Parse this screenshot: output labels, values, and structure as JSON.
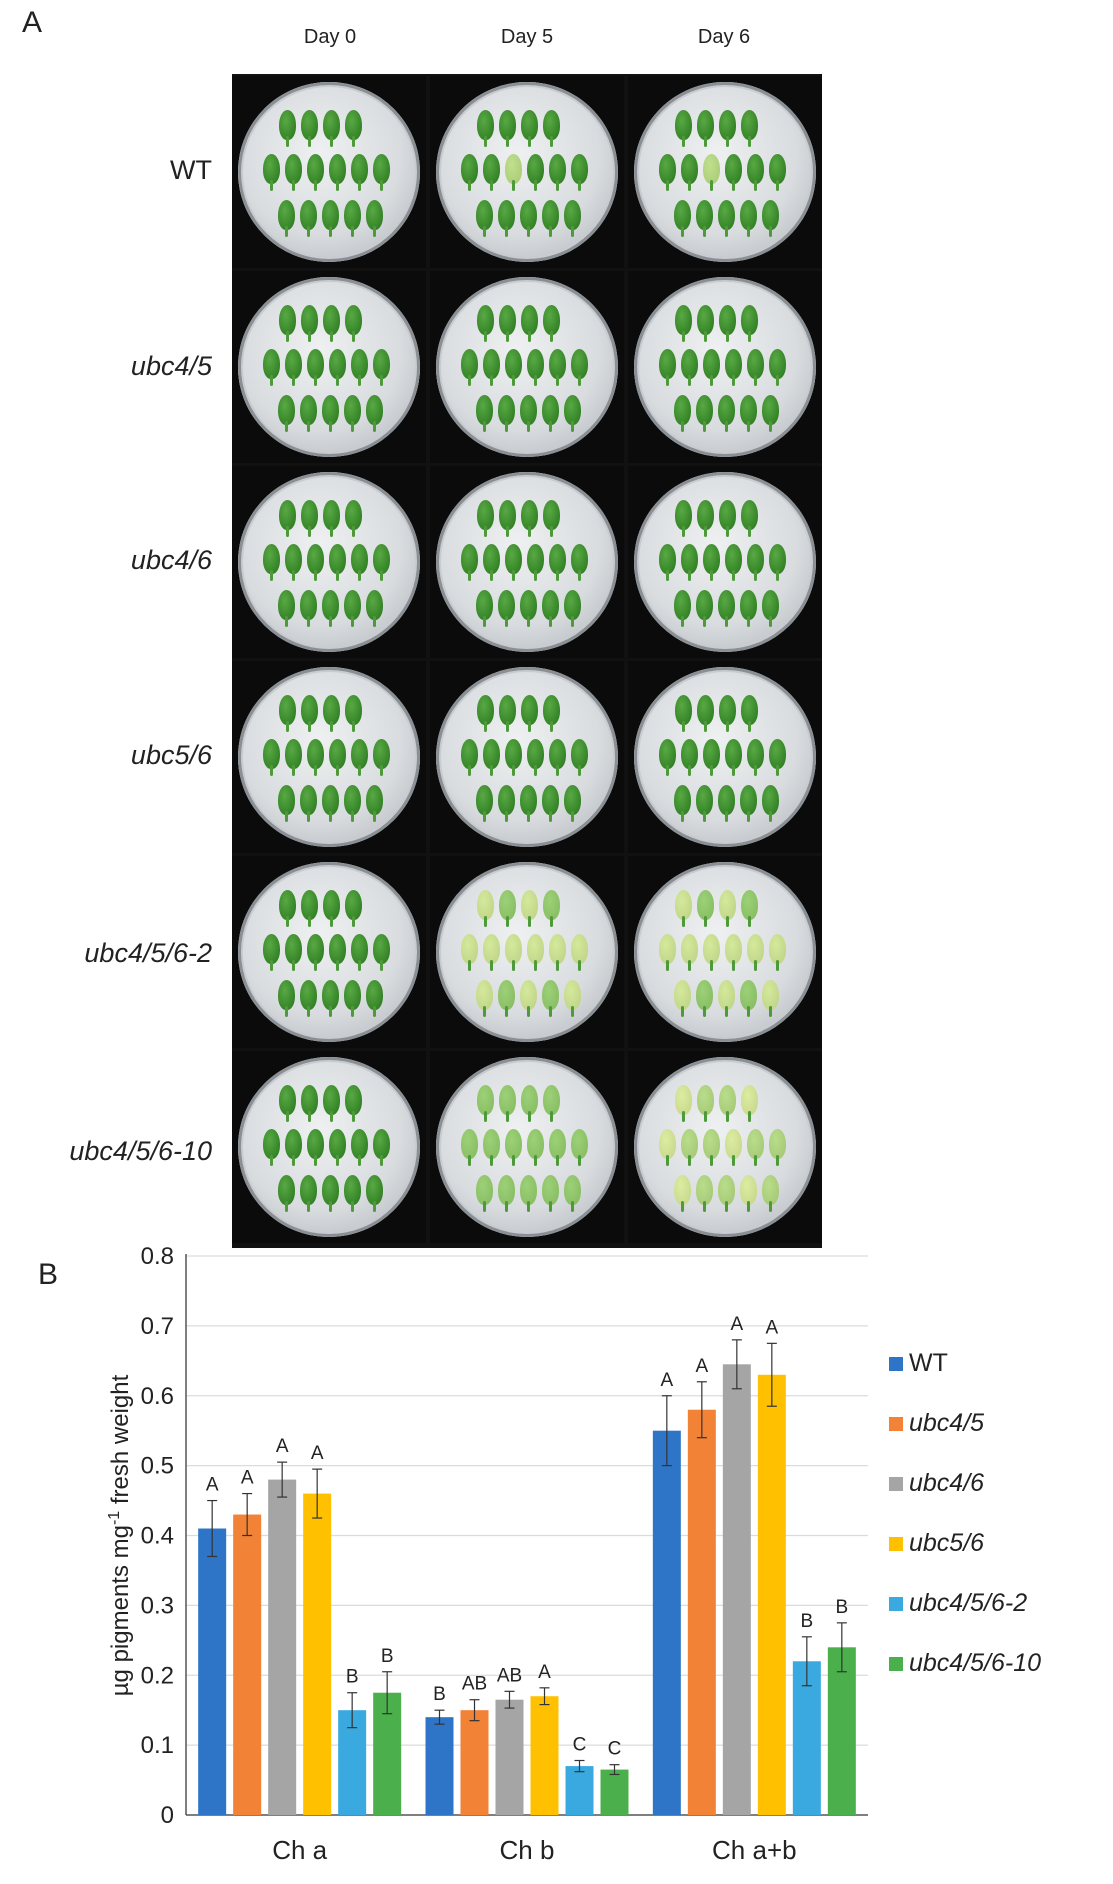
{
  "panel_a": {
    "letter": "A",
    "columns": [
      "Day 0",
      "Day 5",
      "Day 6"
    ],
    "rows": [
      "WT",
      "ubc4/5",
      "ubc4/6",
      "ubc5/6",
      "ubc4/5/6-2",
      "ubc4/5/6-10"
    ]
  },
  "panel_b": {
    "letter": "B"
  },
  "colors": {
    "WT": "#2e75c8",
    "ubc4/5": "#f28236",
    "ubc4/6": "#a5a5a5",
    "ubc5/6": "#ffc000",
    "ubc4/5/6-2": "#3aa9e0",
    "ubc4/5/6-10": "#4bb04b"
  },
  "chart_data": {
    "type": "bar",
    "ylabel": "µg pigments mg⁻¹ fresh weight",
    "ylabel_parts": [
      "µg pigments mg",
      "-1",
      " fresh weight"
    ],
    "xlabel": "",
    "ylim": [
      0,
      0.8
    ],
    "yticks": [
      "0",
      "0.1",
      "0.2",
      "0.3",
      "0.4",
      "0.5",
      "0.6",
      "0.7",
      "0.8"
    ],
    "grid": true,
    "legend_position": "right",
    "categories": [
      "Ch a",
      "Ch b",
      "Ch a+b"
    ],
    "series": [
      {
        "name": "WT",
        "values": [
          0.41,
          0.14,
          0.55
        ],
        "errors": [
          0.04,
          0.01,
          0.05
        ],
        "letters": [
          "A",
          "B",
          "A"
        ]
      },
      {
        "name": "ubc4/5",
        "values": [
          0.43,
          0.15,
          0.58
        ],
        "errors": [
          0.03,
          0.015,
          0.04
        ],
        "letters": [
          "A",
          "AB",
          "A"
        ]
      },
      {
        "name": "ubc4/6",
        "values": [
          0.48,
          0.165,
          0.645
        ],
        "errors": [
          0.025,
          0.012,
          0.035
        ],
        "letters": [
          "A",
          "AB",
          "A"
        ]
      },
      {
        "name": "ubc5/6",
        "values": [
          0.46,
          0.17,
          0.63
        ],
        "errors": [
          0.035,
          0.012,
          0.045
        ],
        "letters": [
          "A",
          "A",
          "A"
        ]
      },
      {
        "name": "ubc4/5/6-2",
        "values": [
          0.15,
          0.07,
          0.22
        ],
        "errors": [
          0.025,
          0.008,
          0.035
        ],
        "letters": [
          "B",
          "C",
          "B"
        ]
      },
      {
        "name": "ubc4/5/6-10",
        "values": [
          0.175,
          0.065,
          0.24
        ],
        "errors": [
          0.03,
          0.007,
          0.035
        ],
        "letters": [
          "B",
          "C",
          "B"
        ]
      }
    ]
  }
}
